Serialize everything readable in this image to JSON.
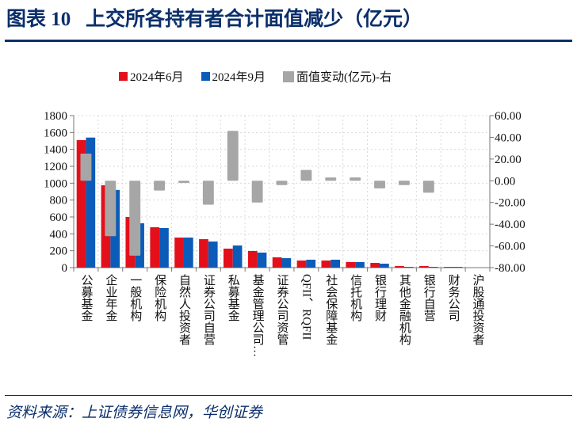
{
  "title": "图表 10   上交所各持有者合计面值减少（亿元）",
  "source": "资料来源：上证债券信息网，华创证券",
  "chart_data": {
    "type": "bar",
    "title": "",
    "categories": [
      "公募基金",
      "企业年金",
      "一般机构",
      "保险机构",
      "自然人投资者",
      "证券公司自营",
      "私募基金",
      "基金管理公司…",
      "证券公司资管",
      "QFII、RQFII",
      "社会保障基金",
      "信托机构",
      "银行理财",
      "其他金融机构",
      "银行自营",
      "财务公司",
      "沪股通投资者"
    ],
    "series": [
      {
        "name": "2024年6月",
        "axis": "left",
        "color": "#e3101b",
        "values": [
          1510,
          975,
          600,
          478,
          356,
          337,
          225,
          197,
          122,
          84,
          84,
          66,
          56,
          19,
          19,
          9,
          0
        ]
      },
      {
        "name": "2024年9月",
        "axis": "left",
        "color": "#0b5cb8",
        "values": [
          1540,
          920,
          525,
          469,
          356,
          309,
          262,
          178,
          112,
          94,
          94,
          66,
          47,
          9,
          9,
          9,
          0
        ]
      },
      {
        "name": "面值变动(亿元)-右",
        "axis": "right",
        "type": "floating-bar",
        "color": "#a6a6a6",
        "values": [
          25,
          -51,
          -69,
          -9,
          -2,
          -22,
          46,
          -20,
          -4,
          10,
          3,
          3,
          -7,
          -4,
          -11,
          0,
          0
        ]
      }
    ],
    "ylim_left": [
      0,
      1800
    ],
    "yticks_left": [
      "0",
      "200",
      "400",
      "600",
      "800",
      "1000",
      "1200",
      "1400",
      "1600",
      "1800"
    ],
    "ylim_right": [
      -80,
      60
    ],
    "yticks_right": [
      "-80.00",
      "-60.00",
      "-40.00",
      "-20.00",
      "0.00",
      "20.00",
      "40.00",
      "60.00"
    ],
    "grid": true,
    "legend_position": "top"
  }
}
